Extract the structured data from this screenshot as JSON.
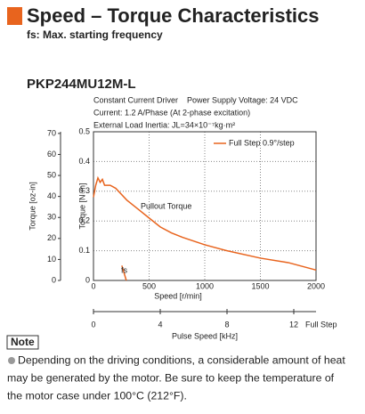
{
  "header": {
    "title": "Speed – Torque Characteristics",
    "subtitle": "fs: Max. starting frequency"
  },
  "chart_data": {
    "type": "line",
    "title": "PKP244MU12M-L",
    "conditions": [
      "Constant Current Driver    Power Supply Voltage: 24 VDC",
      "Current: 1.2 A/Phase (At 2-phase excitation)",
      "External Load Inertia: JL=34×10⁻⁷kg·m²"
    ],
    "xlabel": "Speed [r/min]",
    "xlim": [
      0,
      2000
    ],
    "xticks": [
      0,
      500,
      1000,
      1500,
      2000
    ],
    "ylabel": "Torque [N·m]",
    "ylim": [
      0,
      0.5
    ],
    "yticks": [
      0,
      0.1,
      0.2,
      0.3,
      0.4,
      0.5
    ],
    "y2label": "Torque [oz-in]",
    "y2lim": [
      0,
      70.8
    ],
    "y2ticks": [
      0,
      10,
      20,
      30,
      40,
      50,
      60,
      70
    ],
    "x2label": "Pulse Speed [kHz]",
    "x2unit": "Full Step",
    "x2lim": [
      0,
      13.333
    ],
    "x2ticks": [
      0,
      4,
      8,
      12
    ],
    "grid": true,
    "legend": "upper right",
    "series": [
      {
        "name": "Full Step 0.9°/step",
        "color": "#e8641e",
        "x": [
          0,
          20,
          40,
          60,
          80,
          100,
          150,
          200,
          300,
          400,
          500,
          600,
          700,
          800,
          1000,
          1200,
          1500,
          1750,
          2000
        ],
        "values": [
          0.28,
          0.32,
          0.345,
          0.33,
          0.34,
          0.32,
          0.32,
          0.31,
          0.27,
          0.24,
          0.21,
          0.18,
          0.16,
          0.145,
          0.12,
          0.1,
          0.075,
          0.06,
          0.035
        ]
      }
    ],
    "fs_curve": {
      "x": [
        255,
        295
      ],
      "values": [
        0.05,
        0
      ]
    },
    "annotations": [
      "Pullout Torque",
      "fs"
    ]
  },
  "note": {
    "label": "Note",
    "lines": [
      "Depending on the driving conditions, a considerable amount of heat",
      "may be generated by the motor. Be sure to keep the temperature of",
      "the motor case under 100°C (212°F)."
    ]
  }
}
